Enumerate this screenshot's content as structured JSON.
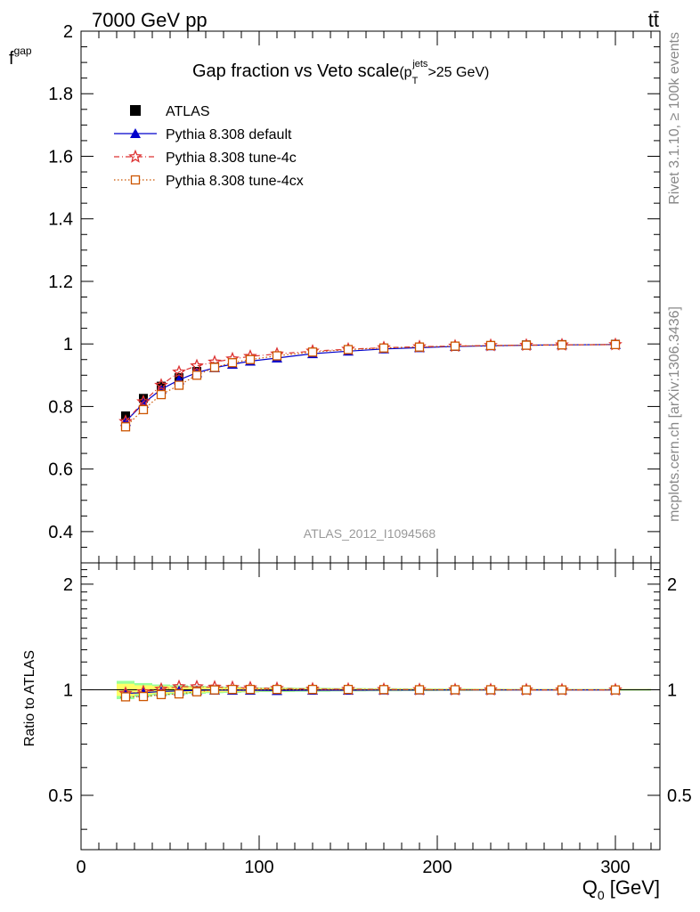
{
  "header": {
    "energy_label": "7000 GeV pp",
    "process_label": "tt̄",
    "side_label_top": "Rivet 3.1.10, ≥ 100k events",
    "side_label_bottom": "mcplots.cern.ch [arXiv:1306.3436]",
    "analysis_id": "ATLAS_2012_I1094568"
  },
  "chart_data": {
    "type": "line",
    "title": "Gap fraction vs Veto scale",
    "title_suffix_base": "(p",
    "title_suffix_sup": "jets",
    "title_suffix_sub": "T",
    "title_suffix_tail": ">25 GeV)",
    "xlabel": "Q",
    "xlabel_sub": "0",
    "xlabel_unit": " [GeV]",
    "ylabel": "f",
    "ylabel_sub": "gap",
    "ratio_ylabel": "Ratio to ATLAS",
    "xlim": [
      0,
      325
    ],
    "ylim": [
      0.3,
      2.0
    ],
    "ratio_ylim": [
      0.35,
      2.3
    ],
    "ratio_scale": "log",
    "x_ticks": [
      0,
      100,
      200,
      300
    ],
    "y_ticks": [
      0.4,
      0.6,
      0.8,
      1,
      1.2,
      1.4,
      1.6,
      1.8,
      2
    ],
    "ratio_ticks": [
      0.5,
      1,
      2
    ],
    "legend_position": "top-left",
    "x": [
      25,
      35,
      45,
      55,
      65,
      75,
      85,
      95,
      110,
      130,
      150,
      170,
      190,
      210,
      230,
      250,
      270,
      300
    ],
    "series": [
      {
        "name": "ATLAS",
        "color": "#000000",
        "marker": "square",
        "values": [
          0.77,
          0.826,
          0.865,
          0.892,
          0.912,
          0.926,
          0.938,
          0.948,
          0.96,
          0.972,
          0.98,
          0.986,
          0.99,
          0.993,
          0.995,
          0.997,
          0.998,
          0.999
        ]
      },
      {
        "name": "Pythia 8.308 default",
        "color": "#0000cc",
        "marker": "triangle",
        "values": [
          0.752,
          0.81,
          0.855,
          0.885,
          0.908,
          0.924,
          0.935,
          0.945,
          0.955,
          0.969,
          0.977,
          0.984,
          0.988,
          0.992,
          0.994,
          0.996,
          0.997,
          0.998
        ]
      },
      {
        "name": "Pythia 8.308 tune-4c",
        "color": "#dd3333",
        "marker": "star",
        "values": [
          0.752,
          0.815,
          0.868,
          0.91,
          0.93,
          0.942,
          0.952,
          0.96,
          0.968,
          0.977,
          0.983,
          0.988,
          0.991,
          0.993,
          0.995,
          0.996,
          0.997,
          0.998
        ]
      },
      {
        "name": "Pythia 8.308 tune-4cx",
        "color": "#cc5500",
        "marker": "open-square",
        "values": [
          0.735,
          0.79,
          0.838,
          0.868,
          0.9,
          0.925,
          0.94,
          0.95,
          0.962,
          0.974,
          0.982,
          0.987,
          0.99,
          0.993,
          0.995,
          0.996,
          0.997,
          0.998
        ]
      }
    ],
    "ratio_band": {
      "inner_color": "#ffff66",
      "outer_color": "#99ff99",
      "x_edges": [
        20,
        30,
        40,
        50,
        60,
        70,
        80,
        90,
        100,
        120,
        140,
        160,
        180,
        200,
        220,
        240,
        260,
        280,
        320
      ],
      "inner_half_width": [
        0.04,
        0.03,
        0.025,
        0.02,
        0.018,
        0.016,
        0.014,
        0.012,
        0.01,
        0.009,
        0.008,
        0.007,
        0.006,
        0.005,
        0.005,
        0.004,
        0.004,
        0.004
      ],
      "outer_half_width": [
        0.06,
        0.045,
        0.035,
        0.03,
        0.026,
        0.022,
        0.02,
        0.017,
        0.015,
        0.013,
        0.011,
        0.01,
        0.009,
        0.008,
        0.007,
        0.006,
        0.006,
        0.006
      ]
    }
  }
}
